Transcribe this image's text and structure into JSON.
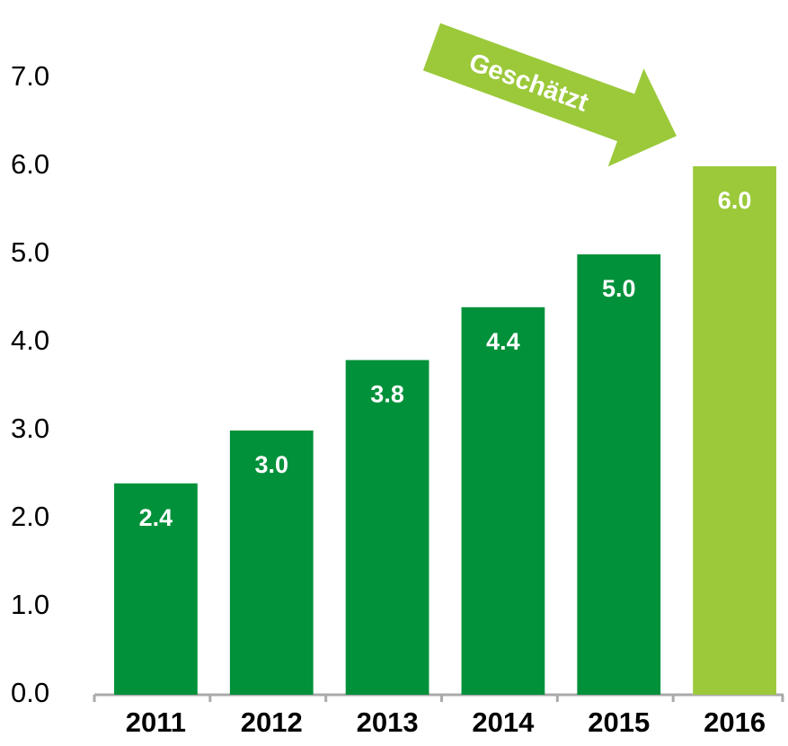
{
  "chart_data": {
    "type": "bar",
    "annotation": "Geschätzt",
    "categories": [
      "2011",
      "2012",
      "2013",
      "2014",
      "2015",
      "2016"
    ],
    "values": [
      2.4,
      3.0,
      3.8,
      4.4,
      5.0,
      6.0
    ],
    "value_labels": [
      "2.4",
      "3.0",
      "3.8",
      "4.4",
      "5.0",
      "6.0"
    ],
    "colors": [
      "#00913a",
      "#00913a",
      "#00913a",
      "#00913a",
      "#00913a",
      "#9bc93a"
    ],
    "ylim": [
      0,
      7
    ],
    "yticks": [
      {
        "value": 0,
        "label": "0.0"
      },
      {
        "value": 1,
        "label": "1.0"
      },
      {
        "value": 2,
        "label": "2.0"
      },
      {
        "value": 3,
        "label": "3.0"
      },
      {
        "value": 4,
        "label": "4.0"
      },
      {
        "value": 5,
        "label": "5.0"
      },
      {
        "value": 6,
        "label": "6.0"
      },
      {
        "value": 7,
        "label": "7.0"
      }
    ],
    "grid": false
  }
}
